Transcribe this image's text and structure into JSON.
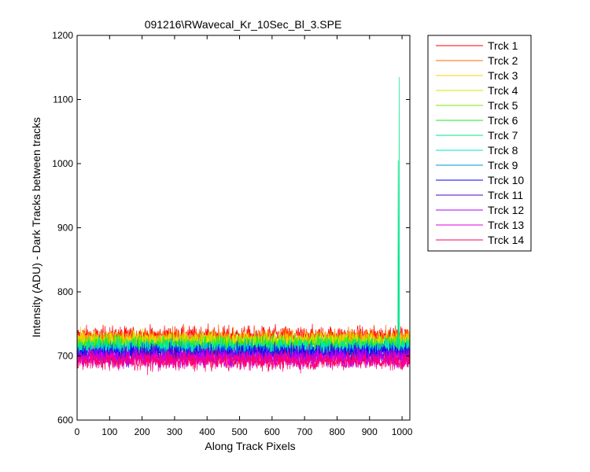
{
  "chart_data": {
    "type": "line",
    "title": "091216\\RWavecal_Kr_10Sec_Bl_3.SPE",
    "xlabel": "Along Track Pixels",
    "ylabel": "Intensity (ADU) - Dark Tracks between tracks",
    "xlim": [
      0,
      1024
    ],
    "ylim": [
      600,
      1200
    ],
    "xticks": [
      0,
      100,
      200,
      300,
      400,
      500,
      600,
      700,
      800,
      900,
      1000
    ],
    "yticks": [
      600,
      700,
      800,
      900,
      1000,
      1100,
      1200
    ],
    "grid": false,
    "legend_position": "outside-right",
    "n_points": 1024,
    "noise_amplitude": 10,
    "series": [
      {
        "name": "Trck 1",
        "color": "#ff0000",
        "baseline": 732
      },
      {
        "name": "Trck 2",
        "color": "#ff6a00",
        "baseline": 728
      },
      {
        "name": "Trck 3",
        "color": "#ffcc00",
        "baseline": 725
      },
      {
        "name": "Trck 4",
        "color": "#d8e600",
        "baseline": 722
      },
      {
        "name": "Trck 5",
        "color": "#7fe600",
        "baseline": 719
      },
      {
        "name": "Trck 6",
        "color": "#22e622",
        "baseline": 716
      },
      {
        "name": "Trck 7",
        "color": "#00e68a",
        "baseline": 713,
        "spikes": [
          {
            "x": 988,
            "y": 1005
          },
          {
            "x": 991,
            "y": 1135
          }
        ]
      },
      {
        "name": "Trck 8",
        "color": "#00e6cc",
        "baseline": 710
      },
      {
        "name": "Trck 9",
        "color": "#0099cc",
        "baseline": 707
      },
      {
        "name": "Trck 10",
        "color": "#0000ff",
        "baseline": 704
      },
      {
        "name": "Trck 11",
        "color": "#5500cc",
        "baseline": 701
      },
      {
        "name": "Trck 12",
        "color": "#aa00ff",
        "baseline": 698
      },
      {
        "name": "Trck 13",
        "color": "#dd00dd",
        "baseline": 695
      },
      {
        "name": "Trck 14",
        "color": "#ff0066",
        "baseline": 692
      }
    ]
  }
}
